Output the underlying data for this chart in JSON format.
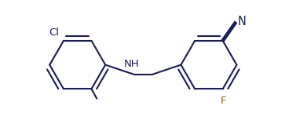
{
  "bg_color": "#ffffff",
  "line_color": "#1a1a5e",
  "line_width": 1.5,
  "label_color_main": "#1a1a5e",
  "label_color_f": "#8b6914",
  "label_fontsize": 9.5,
  "fig_width": 3.68,
  "fig_height": 1.72,
  "dpi": 100,
  "xlim": [
    0.0,
    5.2
  ],
  "ylim": [
    -0.3,
    2.2
  ]
}
